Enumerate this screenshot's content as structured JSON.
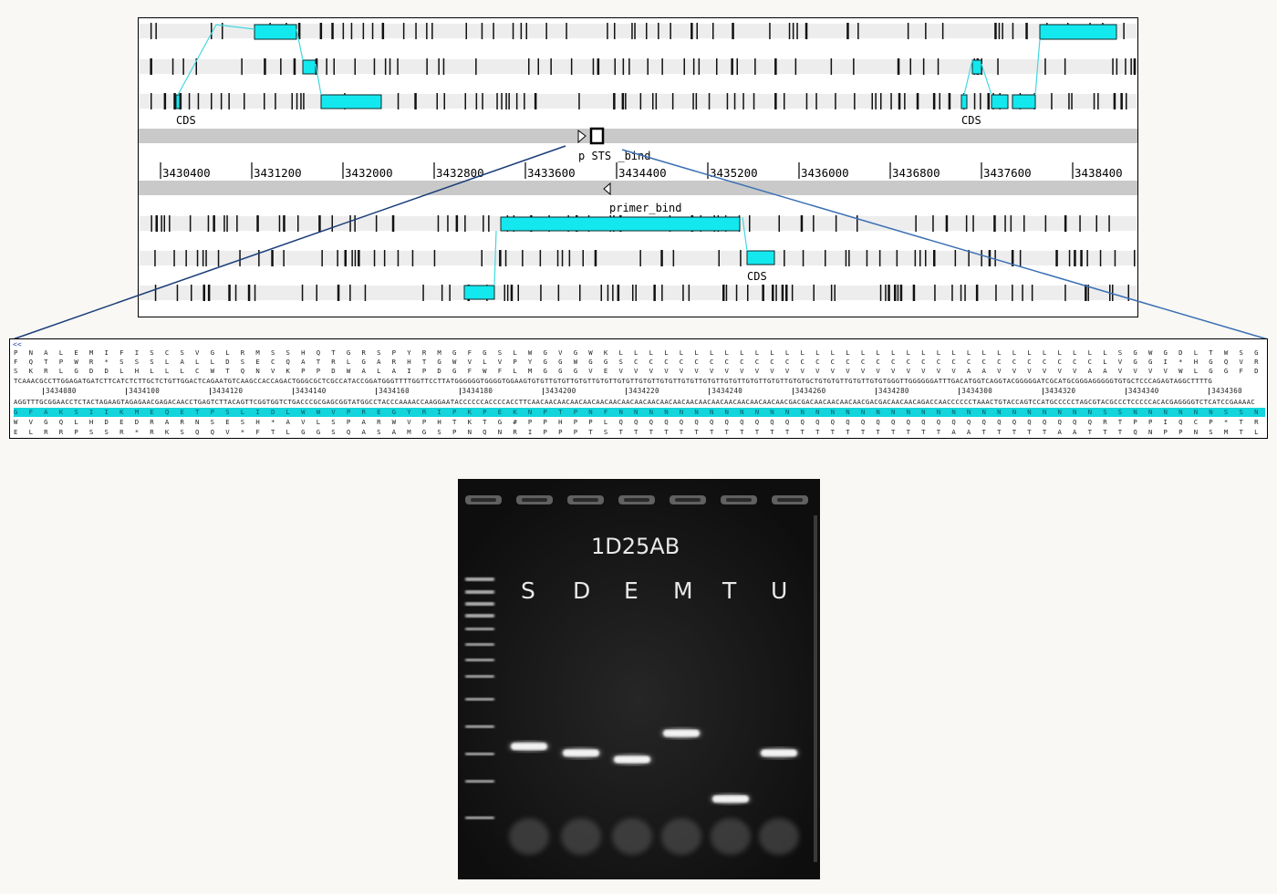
{
  "map": {
    "features": {
      "cds_label": "CDS",
      "pstsbind_label": "p STS _bind",
      "primer_label": "primer_bind"
    },
    "ruler_ticks": [
      "3430400",
      "3431200",
      "3432000",
      "3432800",
      "3433600",
      "3434400",
      "3435200",
      "3436000",
      "3436800",
      "3437600",
      "3438400"
    ],
    "colors": {
      "feature": "#14e8ef",
      "connector": "#40d8e0",
      "track": "#ededed",
      "center": "#c9c9c9"
    }
  },
  "sequence": {
    "arrow": "<<",
    "aa_top1": "P N A L E M I F I S C S V G L R M S S H Q T G R S P Y R M G F G S L W G V G W K L L L L L L L L L L L L L L L L L L L L L L L L L L L L L L L L L S G W G D L T W S G T G D R M R E G V C S P E * A F G",
    "aa_top2": "F Q T P W R * S S S L A L L D S E C Q A T R L G A R H T G W V L V P Y G G W G G S C C C C C C C C C C C C C C C C C C C C C C C C C C C C C C C L V G G I * H G Q V R G I A C G R G C A P Q S R L F",
    "aa_top3": "S K R L G D D L H L L L C W T Q N V K P P D W A L A I P D G F W F L M G G G V E V V V V V V V V V V V V V V V V V V V V V V V A A V V V V V V A A V V V V W L G G F D M V R Y G G S H A G G G V L P R V G F L",
    "dna_fwd": "TCAAACGCCTTGGAGATGATCTTCATCTCTTGCTCTGTTGGACTCAGAATGTCAAGCCACCAGACTGGGCGCTCGCCATACCGGATGGGTTTTGGTTCCTTATGGGGGGTGGGGTGGAAGTGTGTTGTGTTGTGTTGTGTTGTGTTGTGTTGTGTTGTGTTGTGTTGTGTTGTGTTGTGTTGTGTGCTGTGTGTTGTGTTGTGTGGGTTGGGGGGATTTGACATGGTCAGGTACGGGGGATCGCATGCGGGAGGGGGTGTGCTCCCAGAGTAGGCTTTTG",
    "ruler": [
      "3434080",
      "3434100",
      "3434120",
      "3434140",
      "3434160",
      "3434180",
      "3434200",
      "3434220",
      "3434240",
      "3434260",
      "3434280",
      "3434300",
      "3434320",
      "3434340",
      "3434360"
    ],
    "dna_rev": "AGGTTTGCGGAACCTCTACTAGAAGTAGAGAACGAGACAACCTGAGTCTTACAGTTCGGTGGTCTGACCCGCGAGCGGTATGGCCTACCCAAAACCAAGGAATACCCCCCACCCCACCTTCAACAACAACAACAACAACAACAACAACAACAACAACAACAACAACAACAACAACAACAACGACGACAACAACAACAACGACGACAACAACAGACCAACCCCCCTAAACTGTACCAGTCCATGCCCCCTAGCGTACGCCCTCCCCCACACGAGGGGTCTCATCCGAAAAC",
    "aa_hl": "G F A K S I I K M E Q E T P S L I D L W W V P R E G Y R I P K P E K N P T P N F N N N N N N N N N N N N N N N N N N N N N N N N N N N N N N N N S S N N N N N N S S N N D P Q P S K V H D P V P S R M R S P T H E G S Y A K Q",
    "aa_bot1": "W V G Q L H D E D R A R N S E S H * A V L S P A R W V P H T K T G # P P H P P L Q Q Q Q Q Q Q Q Q Q Q Q Q Q Q Q Q Q Q Q Q Q Q Q Q Q Q Q Q Q Q Q R T P P I Q C P * T R P I A H P L P H A G W L L S K A",
    "aa_bot2": "E L R R P S S R * R K S Q Q V * F T L G G S Q A S A M G S P N Q N R I P P P T S T T T T T T T T T T T T T T T T T T T T T T A A T T T T T A A T T T Q N P P N S M T L Y P P D C A P P P T S G L T P K K"
  },
  "gel": {
    "title": "1D25AB",
    "lanes": [
      "S",
      "D",
      "E",
      "M",
      "T",
      "U"
    ],
    "band_levels": [
      0.62,
      0.64,
      0.66,
      0.58,
      0.78,
      0.64
    ]
  }
}
